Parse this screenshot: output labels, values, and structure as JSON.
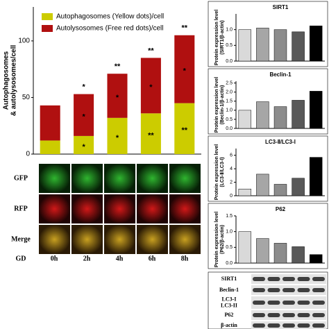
{
  "chart_data": [
    {
      "type": "stacked",
      "ylabel": "Autophagosomes\n& autolysosomes/cell",
      "categories": [
        "0h",
        "2h",
        "4h",
        "6h",
        "8h"
      ],
      "series": [
        {
          "name": "Autophagosomes (Yellow dots)/cell",
          "color": "#cccc00",
          "values": [
            12,
            16,
            32,
            36,
            45
          ],
          "annotations": [
            null,
            "*",
            "*",
            "**",
            "**"
          ]
        },
        {
          "name": "Autolysosomes (Free red dots)/cell",
          "color": "#b01010",
          "values": [
            31,
            37,
            39,
            49,
            60
          ],
          "annotations": [
            null,
            "*",
            "*",
            "*",
            "*"
          ]
        }
      ],
      "total_annotations": [
        null,
        "*",
        "**",
        "**",
        "**"
      ],
      "ylim": [
        0,
        130
      ],
      "yticks": [
        0,
        50,
        100
      ],
      "legend": "top-left"
    },
    {
      "type": "bar",
      "title": "SIRT1",
      "ylabel": "Protein expression level\n(SIRT1/β-actin)",
      "values": [
        1.0,
        1.05,
        1.0,
        0.93,
        1.12
      ],
      "colors": [
        "#d9d9d9",
        "#a6a6a6",
        "#8c8c8c",
        "#595959",
        "#000000"
      ],
      "ylim": [
        0,
        1.5
      ],
      "yticks": [
        {
          "value": 0,
          "label": "0.0"
        },
        {
          "value": 0.5,
          "label": "0.5"
        },
        {
          "value": 1,
          "label": "1.0"
        }
      ]
    },
    {
      "type": "bar",
      "title": "Beclin-1",
      "ylabel": "Protein expression level\n(Beclin-1/β-actin)",
      "values": [
        1.0,
        1.47,
        1.2,
        1.55,
        2.05
      ],
      "colors": [
        "#d9d9d9",
        "#a6a6a6",
        "#8c8c8c",
        "#595959",
        "#000000"
      ],
      "ylim": [
        0,
        2.6
      ],
      "yticks": [
        {
          "value": 0,
          "label": "0.0"
        },
        {
          "value": 0.5,
          "label": "0.5"
        },
        {
          "value": 1,
          "label": "1.0"
        },
        {
          "value": 1.5,
          "label": "1.5"
        },
        {
          "value": 2,
          "label": "2.0"
        },
        {
          "value": 2.5,
          "label": "2.5"
        }
      ]
    },
    {
      "type": "bar",
      "title": "LC3-Ⅱ/LC3-Ⅰ",
      "ylabel": "Protein expression level\n(LC3-Ⅱ/LC3-Ⅰ)",
      "values": [
        1.0,
        3.2,
        1.7,
        2.6,
        5.7
      ],
      "colors": [
        "#d9d9d9",
        "#a6a6a6",
        "#8c8c8c",
        "#595959",
        "#000000"
      ],
      "ylim": [
        0,
        7
      ],
      "yticks": [
        0,
        2,
        4,
        6
      ]
    },
    {
      "type": "bar",
      "title": "P62",
      "ylabel": "Protein expression level\n(P62/β-actin)",
      "values": [
        1.0,
        0.78,
        0.63,
        0.52,
        0.27
      ],
      "colors": [
        "#d9d9d9",
        "#a6a6a6",
        "#8c8c8c",
        "#595959",
        "#000000"
      ],
      "ylim": [
        0,
        1.5
      ],
      "yticks": [
        {
          "value": 0,
          "label": "0.0"
        },
        {
          "value": 0.5,
          "label": "0.5"
        },
        {
          "value": 1,
          "label": "1.0"
        },
        {
          "value": 1.5,
          "label": "1.5"
        }
      ]
    }
  ],
  "image_panel": {
    "rows": [
      "GFP",
      "RFP",
      "Merge"
    ],
    "row_label": "GD"
  },
  "blot": {
    "labels": [
      "SIRT1",
      "Beclin-1",
      "LC3-I\nLC3-II",
      "P62",
      "β-actin"
    ]
  }
}
